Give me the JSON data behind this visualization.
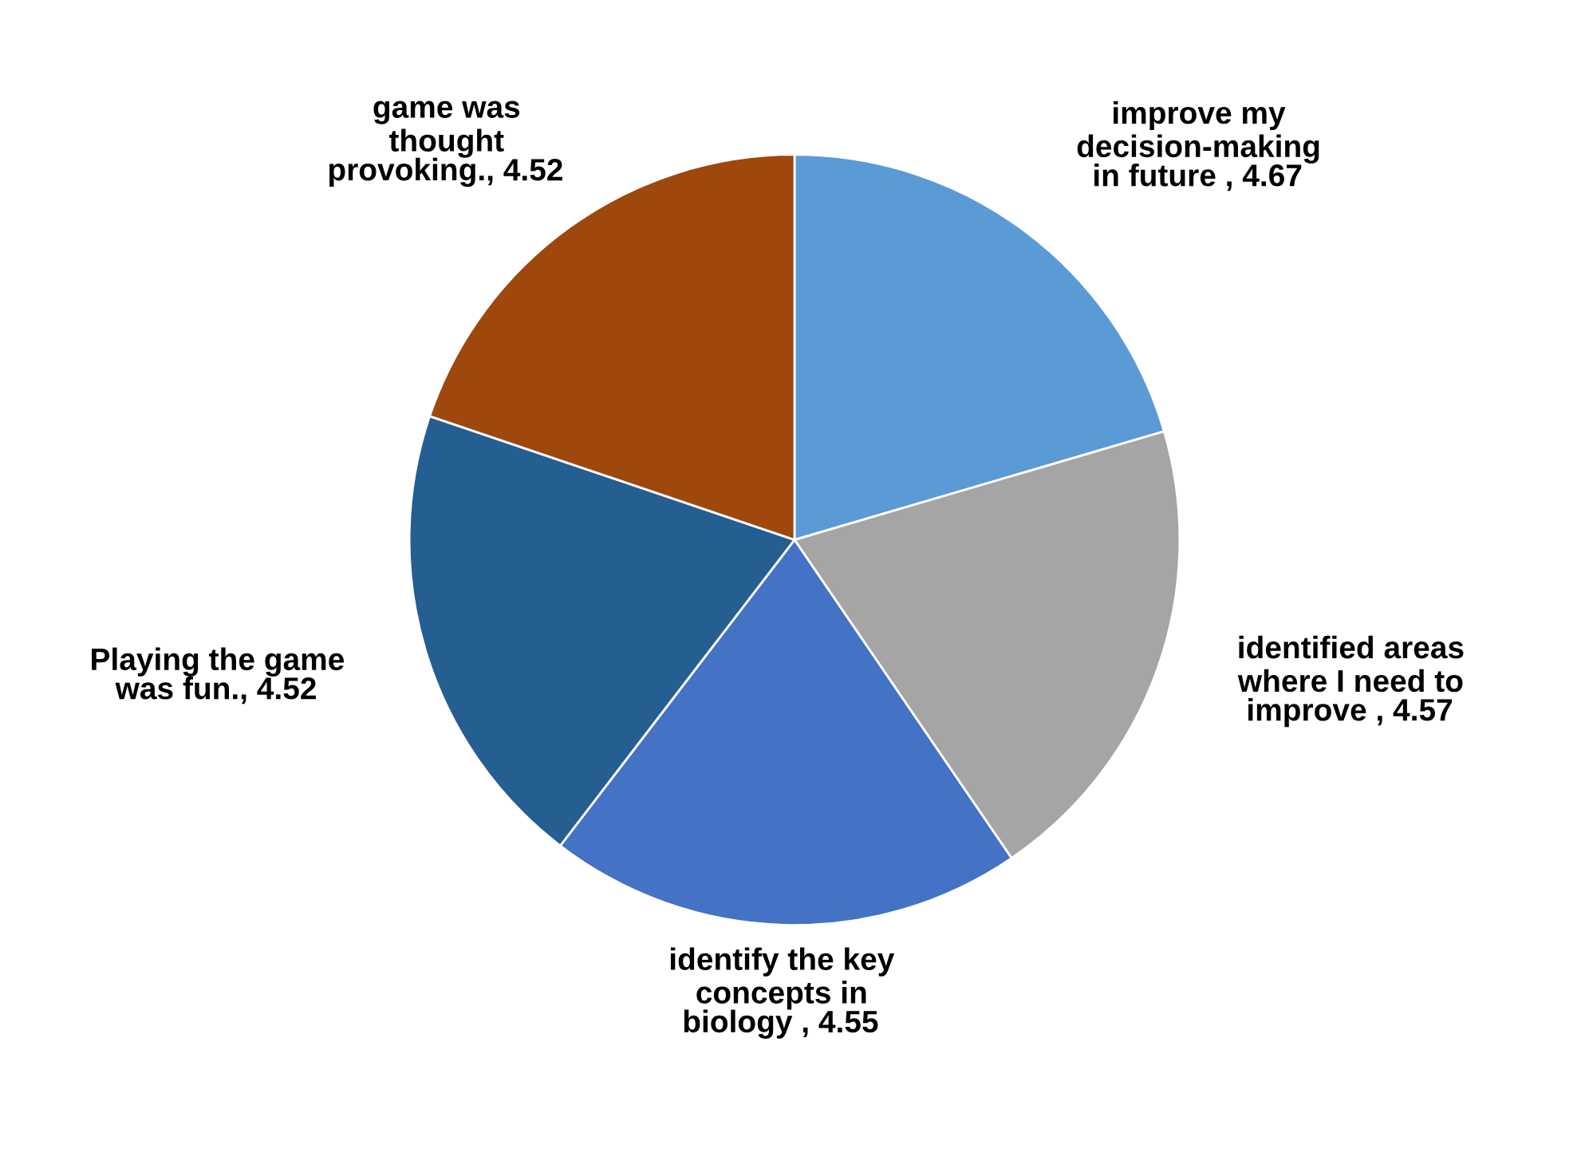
{
  "chart_data": {
    "type": "pie",
    "categories": [
      "improve my\ndecision-making\nin future ",
      "identified areas\nwhere I need to\nimprove ",
      "identify the key\nconcepts in\nbiology ",
      "Playing the game\nwas fun.",
      "game was\nthought\nprovoking."
    ],
    "values": [
      4.67,
      4.57,
      4.55,
      4.52,
      4.52
    ],
    "colors": [
      "#5b9bd5",
      "#a5a5a5",
      "#4472c4",
      "#255e91",
      "#9e480e"
    ],
    "value_labels": [
      ", 4.67",
      ", 4.57",
      ", 4.55",
      ", 4.52",
      ", 4.52"
    ]
  }
}
